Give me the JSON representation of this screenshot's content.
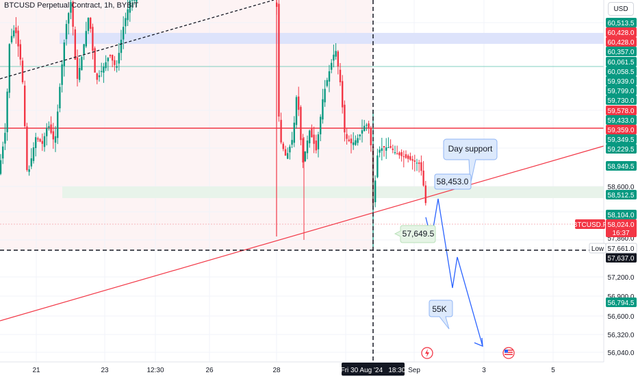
{
  "header": {
    "title": "BTCUSD Perpetual Contract, 1h, BYBIT",
    "currency_button": "USD"
  },
  "price_scale": {
    "labels": [
      "60,513.5",
      "60,428.0",
      "60,428.0",
      "60,357.0",
      "60,061.5",
      "60,058.5",
      "59,939.0",
      "59,799.0",
      "59,730.0",
      "59,578.0",
      "59,433.0",
      "59,359.0",
      "59,349.5",
      "59,229.5",
      "58,949.5",
      "58,600.0",
      "58,512.5",
      "58,104.0",
      "57,860.0",
      "57,637.0",
      "57,200.0",
      "56,900.0",
      "56,794.5",
      "56,600.0",
      "56,320.0",
      "56,040.0"
    ],
    "symbol_tag": {
      "symbol": "BTCUSD.P",
      "price": "58,024.0",
      "countdown": "16:37"
    },
    "low_tag": {
      "label": "Low",
      "value": "57,661.0"
    },
    "crosshair_price": "57,637.0"
  },
  "time_scale": {
    "labels": [
      "21",
      "23",
      "12:30",
      "26",
      "28",
      "Sep",
      "3",
      "5"
    ],
    "crosshair_time": "Fri 30 Aug '24   18:30"
  },
  "annotations": {
    "day_support": "Day support",
    "level_58453": "58,453.0",
    "level_57649": "57,649.5",
    "target_55k": "55K"
  },
  "colors": {
    "up": "#089981",
    "down": "#f23645",
    "resistance_line": "#f23645",
    "trend_line": "#f23645",
    "projection": "#2962ff",
    "crosshair": "#131722",
    "blue_zone": "#dde3fb",
    "green_zone": "#e7f3e9",
    "callout_fill": "#dce9fc",
    "callout_border": "#90b5f5"
  },
  "icons": {
    "event_flash": "flash-event-icon",
    "event_us_flag": "us-flag-event-icon"
  }
}
